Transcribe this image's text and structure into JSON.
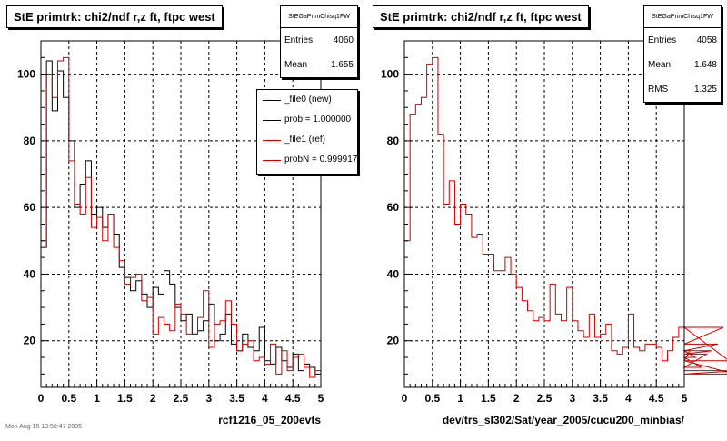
{
  "panels": [
    {
      "title": "StE primtrk: chi2/ndf r,z ft, ftpc west",
      "xlabel": "rcf1216_05_200evts",
      "stats": {
        "name": "StEGaPrimChisq1FW",
        "rows": [
          {
            "label": "Entries",
            "value": "4060"
          },
          {
            "label": "Mean",
            "value": "1.655"
          }
        ]
      },
      "legend": [
        {
          "label": "_file0 (new)",
          "color": "#000000"
        },
        {
          "label": "prob = 1.000000",
          "color": "#000000"
        },
        {
          "label": "_file1 (ref)",
          "color": "#cc0000"
        },
        {
          "label": "probN = 0.999917",
          "color": "#cc0000"
        }
      ]
    },
    {
      "title": "StE primtrk: chi2/ndf r,z ft, ftpc west",
      "xlabel": "dev/trs_sl302/Sat/year_2005/cucu200_minbias/",
      "stats": {
        "name": "StEGaPrimChisq1FW",
        "rows": [
          {
            "label": "Entries",
            "value": "4058"
          },
          {
            "label": "Mean",
            "value": "1.648"
          },
          {
            "label": "RMS",
            "value": "1.325"
          }
        ]
      }
    }
  ],
  "footer": "Mon Aug 15 13:50:47 2005",
  "chart_data": [
    {
      "type": "line",
      "title": "StE primtrk: chi2/ndf r,z ft, ftpc west",
      "xlabel": "rcf1216_05_200evts",
      "xlim": [
        0,
        5
      ],
      "ylim": [
        6,
        110
      ],
      "xticks": [
        0,
        0.5,
        1,
        1.5,
        2,
        2.5,
        3,
        3.5,
        4,
        4.5,
        5
      ],
      "xtick_labels": [
        "0",
        "0.5",
        "1",
        "1.5",
        "2",
        "2.5",
        "3",
        "3.5",
        "4",
        "4.5",
        "5"
      ],
      "yticks": [
        20,
        40,
        60,
        80,
        100
      ],
      "grid": true,
      "bin_width": 0.1,
      "series": [
        {
          "name": "_file0 (new)",
          "color": "#000000",
          "values": [
            48,
            104,
            89,
            101,
            93,
            80,
            60,
            67,
            74,
            58,
            60,
            54,
            58,
            52,
            42,
            39,
            35,
            38,
            34,
            30,
            36,
            34,
            41,
            37,
            30,
            26,
            28,
            22,
            23,
            26,
            31,
            20,
            22,
            28,
            19,
            17,
            22,
            18,
            17,
            24,
            14,
            13,
            18,
            14,
            12,
            16,
            11,
            13,
            12,
            10
          ]
        },
        {
          "name": "_file1 (ref)",
          "color": "#cc0000",
          "values": [
            50,
            100,
            93,
            104,
            105,
            74,
            61,
            58,
            69,
            54,
            57,
            50,
            58,
            48,
            44,
            37,
            39,
            40,
            32,
            33,
            22,
            27,
            25,
            23,
            31,
            28,
            22,
            22,
            27,
            35,
            18,
            25,
            26,
            32,
            25,
            17,
            19,
            20,
            14,
            15,
            13,
            19,
            10,
            17,
            11,
            15,
            16,
            12,
            9,
            11
          ]
        }
      ]
    },
    {
      "type": "line",
      "title": "StE primtrk: chi2/ndf r,z ft, ftpc west",
      "xlabel": "dev/trs_sl302/Sat/year_2005/cucu200_minbias/",
      "xlim": [
        0,
        5
      ],
      "ylim": [
        6,
        110
      ],
      "xticks": [
        0,
        0.5,
        1,
        1.5,
        2,
        2.5,
        3,
        3.5,
        4,
        4.5,
        5
      ],
      "xtick_labels": [
        "0",
        "0.5",
        "1",
        "1.5",
        "2",
        "2.5",
        "3",
        "3.5",
        "4",
        "4.5",
        "5"
      ],
      "yticks": [
        20,
        40,
        60,
        80,
        100
      ],
      "grid": true,
      "bin_width": 0.1,
      "series": [
        {
          "name": "",
          "color": "#cc0000",
          "values": [
            50,
            88,
            91,
            93,
            103,
            105,
            82,
            61,
            68,
            55,
            61,
            58,
            51,
            52,
            46,
            46,
            41,
            41,
            45,
            40,
            36,
            32,
            29,
            26,
            27,
            26,
            37,
            28,
            26,
            36,
            26,
            23,
            21,
            28,
            21,
            22,
            25,
            17,
            16,
            18,
            28,
            18,
            17,
            19,
            19,
            18,
            14,
            17,
            21,
            24,
            14,
            17,
            15,
            12,
            16,
            17,
            19,
            24,
            14,
            10,
            11
          ]
        }
      ]
    }
  ]
}
